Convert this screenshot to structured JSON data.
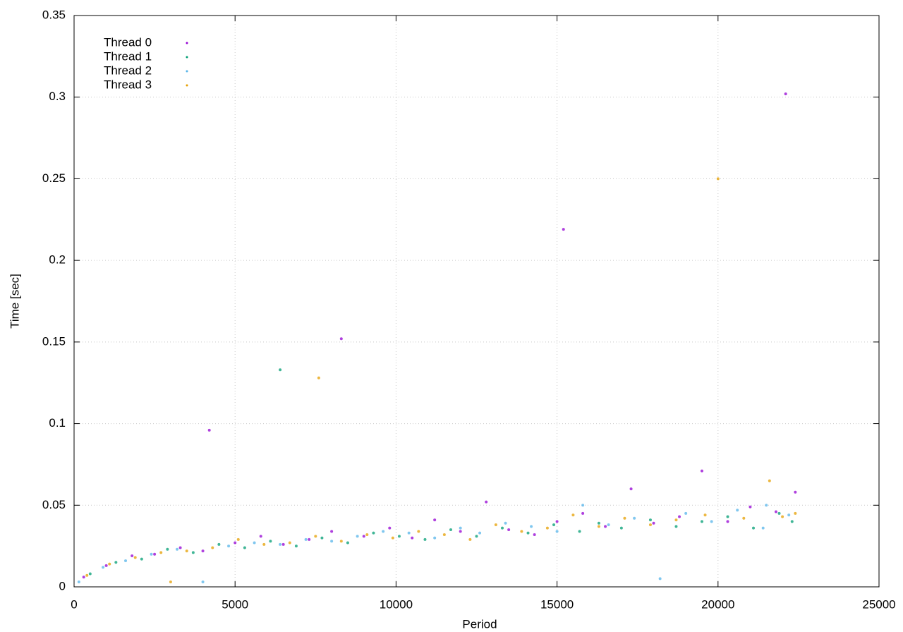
{
  "chart_data": {
    "type": "scatter",
    "xlabel": "Period",
    "ylabel": "Time [sec]",
    "xlim": [
      0,
      25000
    ],
    "xticks": [
      0,
      5000,
      10000,
      15000,
      20000,
      25000
    ],
    "ylim": [
      0,
      0.35
    ],
    "yticks": [
      0,
      0.05,
      0.1,
      0.15,
      0.2,
      0.25,
      0.3,
      0.35
    ],
    "grid": true,
    "legend": "top-left",
    "series": [
      {
        "name": "Thread 0",
        "color": "#9400d3",
        "x": [
          300,
          1000,
          1800,
          2500,
          3300,
          4000,
          4200,
          5000,
          5800,
          6500,
          7300,
          8000,
          8300,
          9000,
          9800,
          10500,
          11200,
          12000,
          12800,
          13500,
          14300,
          15000,
          15200,
          15800,
          16500,
          17300,
          18000,
          18800,
          19500,
          20300,
          21000,
          21800,
          22100,
          22400
        ],
        "values": [
          0.006,
          0.013,
          0.019,
          0.02,
          0.024,
          0.022,
          0.096,
          0.027,
          0.031,
          0.026,
          0.029,
          0.034,
          0.152,
          0.031,
          0.036,
          0.03,
          0.041,
          0.034,
          0.052,
          0.035,
          0.032,
          0.04,
          0.219,
          0.045,
          0.037,
          0.06,
          0.039,
          0.043,
          0.071,
          0.04,
          0.049,
          0.046,
          0.302,
          0.058
        ]
      },
      {
        "name": "Thread 1",
        "color": "#009e73",
        "x": [
          500,
          1300,
          2100,
          2900,
          3700,
          4500,
          5300,
          6100,
          6400,
          6900,
          7700,
          8500,
          9300,
          10100,
          10900,
          11700,
          12500,
          13300,
          14100,
          14900,
          15700,
          16300,
          17000,
          17900,
          18700,
          19500,
          20300,
          21100,
          21900,
          22300
        ],
        "values": [
          0.008,
          0.015,
          0.017,
          0.023,
          0.021,
          0.026,
          0.024,
          0.028,
          0.133,
          0.025,
          0.03,
          0.027,
          0.033,
          0.031,
          0.029,
          0.035,
          0.031,
          0.036,
          0.033,
          0.038,
          0.034,
          0.039,
          0.036,
          0.041,
          0.037,
          0.04,
          0.043,
          0.036,
          0.045,
          0.04
        ]
      },
      {
        "name": "Thread 2",
        "color": "#56b4e9",
        "x": [
          150,
          900,
          1600,
          2400,
          3200,
          4000,
          4800,
          5600,
          6400,
          7200,
          8000,
          8800,
          9600,
          10400,
          11200,
          12000,
          12600,
          13400,
          14200,
          15000,
          15800,
          16600,
          17400,
          18200,
          19000,
          19800,
          20600,
          21400,
          21500,
          22200
        ],
        "values": [
          0.003,
          0.012,
          0.016,
          0.02,
          0.023,
          0.003,
          0.025,
          0.027,
          0.026,
          0.029,
          0.028,
          0.031,
          0.034,
          0.033,
          0.03,
          0.036,
          0.033,
          0.039,
          0.037,
          0.034,
          0.05,
          0.038,
          0.042,
          0.005,
          0.045,
          0.04,
          0.047,
          0.036,
          0.05,
          0.044
        ]
      },
      {
        "name": "Thread 3",
        "color": "#e69f00",
        "x": [
          400,
          1100,
          1900,
          2700,
          3000,
          3500,
          4300,
          5100,
          5900,
          6700,
          7500,
          7600,
          8300,
          9100,
          9900,
          10700,
          11500,
          12300,
          13100,
          13900,
          14700,
          15500,
          16300,
          17100,
          17900,
          18700,
          19600,
          20000,
          20800,
          21600,
          22000,
          22400
        ],
        "values": [
          0.007,
          0.014,
          0.018,
          0.021,
          0.003,
          0.022,
          0.024,
          0.029,
          0.026,
          0.027,
          0.031,
          0.128,
          0.028,
          0.032,
          0.03,
          0.034,
          0.032,
          0.029,
          0.038,
          0.034,
          0.036,
          0.044,
          0.037,
          0.042,
          0.038,
          0.041,
          0.044,
          0.25,
          0.042,
          0.065,
          0.043,
          0.045
        ]
      }
    ]
  }
}
